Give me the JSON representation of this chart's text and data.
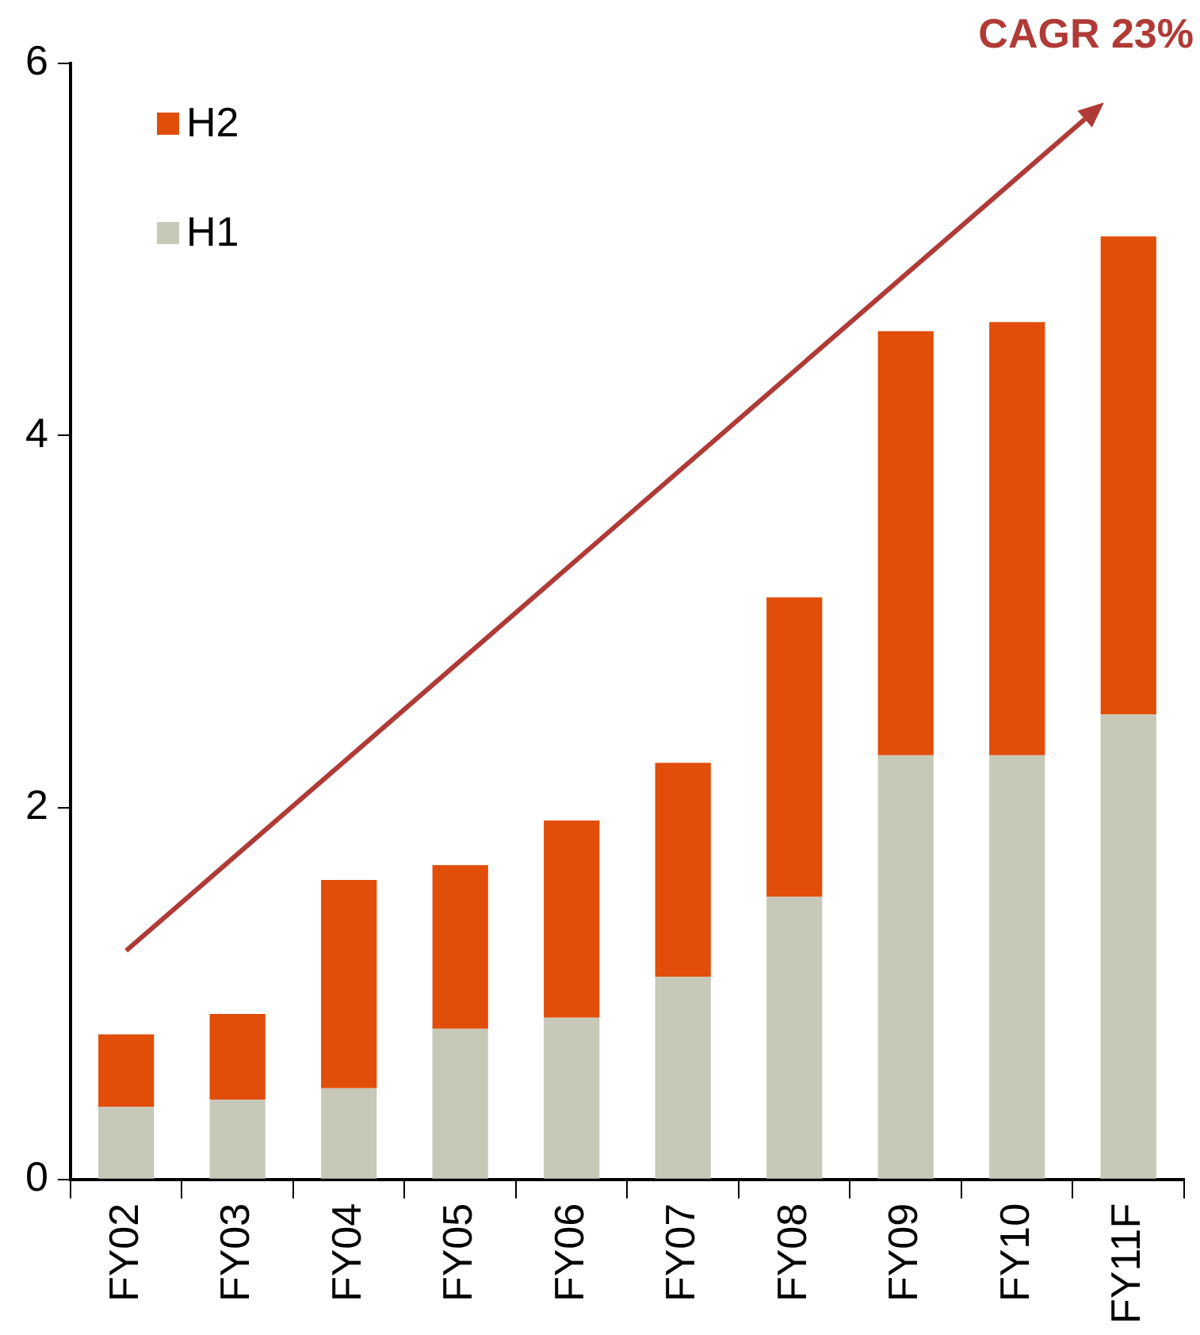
{
  "chart_data": {
    "type": "bar",
    "stacked": true,
    "categories": [
      "FY02",
      "FY03",
      "FY04",
      "FY05",
      "FY06",
      "FY07",
      "FY08",
      "FY09",
      "FY10",
      "FY11F"
    ],
    "series": [
      {
        "name": "H1",
        "color": "#c8c8b8",
        "values": [
          0.39,
          0.43,
          0.49,
          0.81,
          0.87,
          1.09,
          1.52,
          2.28,
          2.28,
          2.5
        ]
      },
      {
        "name": "H2",
        "color": "#e04e0a",
        "values": [
          0.39,
          0.46,
          1.12,
          0.88,
          1.06,
          1.15,
          1.61,
          2.28,
          2.33,
          2.57
        ]
      }
    ],
    "ylim": [
      0,
      6
    ],
    "yticks": [
      0,
      2,
      4,
      6
    ],
    "grid": false,
    "legend": "top left",
    "annotations": [
      "CAGR 23%"
    ]
  }
}
